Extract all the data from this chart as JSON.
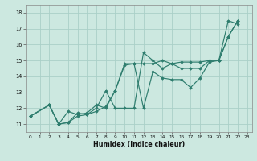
{
  "xlabel": "Humidex (Indice chaleur)",
  "bg_color": "#cce8e0",
  "grid_color": "#aad0c8",
  "line_color": "#2e7d6e",
  "xlim": [
    -0.5,
    23.5
  ],
  "ylim": [
    10.5,
    18.5
  ],
  "xticks": [
    0,
    1,
    2,
    3,
    4,
    5,
    6,
    7,
    8,
    9,
    10,
    11,
    12,
    13,
    14,
    15,
    16,
    17,
    18,
    19,
    20,
    21,
    22,
    23
  ],
  "yticks": [
    11,
    12,
    13,
    14,
    15,
    16,
    17,
    18
  ],
  "line1_x": [
    0,
    2,
    3,
    4,
    5,
    6,
    7,
    8,
    9,
    10,
    11,
    12,
    13,
    14,
    15,
    16,
    17,
    18,
    19,
    20,
    21,
    22
  ],
  "line1_y": [
    11.5,
    12.2,
    11.0,
    11.1,
    11.7,
    11.6,
    12.0,
    13.1,
    12.0,
    12.0,
    12.0,
    15.5,
    15.0,
    14.5,
    14.8,
    14.5,
    14.5,
    14.5,
    15.0,
    15.0,
    17.5,
    17.3
  ],
  "line2_x": [
    0,
    2,
    3,
    4,
    5,
    6,
    7,
    8,
    9,
    10,
    11,
    12,
    13,
    14,
    15,
    16,
    17,
    18,
    19,
    20,
    21,
    22
  ],
  "line2_y": [
    11.5,
    12.2,
    11.0,
    11.8,
    11.6,
    11.7,
    12.2,
    12.0,
    13.1,
    14.8,
    14.8,
    14.8,
    14.8,
    15.0,
    14.8,
    14.9,
    14.9,
    14.9,
    15.0,
    15.0,
    16.5,
    17.5
  ],
  "line3_x": [
    0,
    2,
    3,
    4,
    5,
    6,
    7,
    8,
    9,
    10,
    11,
    12,
    13,
    14,
    15,
    16,
    17,
    18,
    19,
    20,
    21,
    22
  ],
  "line3_y": [
    11.5,
    12.2,
    11.0,
    11.1,
    11.5,
    11.6,
    11.8,
    12.1,
    13.1,
    14.7,
    14.8,
    12.0,
    14.3,
    13.9,
    13.8,
    13.8,
    13.3,
    13.9,
    14.9,
    15.0,
    16.5,
    17.5
  ]
}
